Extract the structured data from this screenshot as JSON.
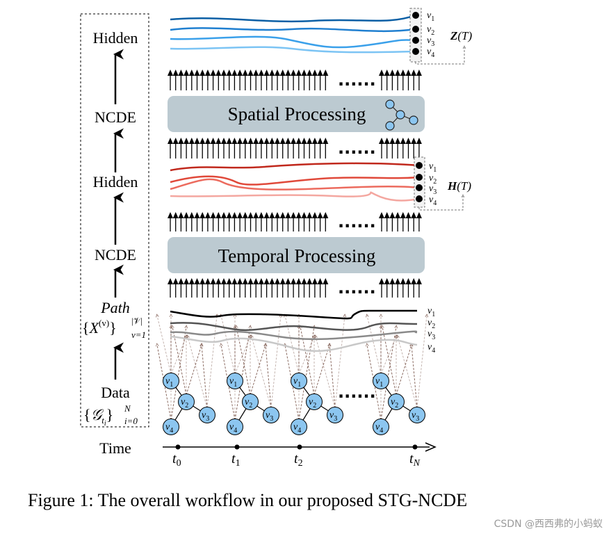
{
  "left_stages": {
    "hidden_top": "Hidden",
    "ncde_top": "NCDE",
    "hidden_mid": "Hidden",
    "ncde_bottom": "NCDE",
    "path": "Path",
    "path_set": {
      "open": "{",
      "base": "X",
      "sup": "(v)",
      "close": "}",
      "upper": "|𝒱|",
      "lower": "v=1"
    },
    "data": "Data",
    "data_set": {
      "open": "{",
      "base": "𝒢",
      "sub": "t",
      "subsub": "i",
      "close": "}",
      "upper": "N",
      "lower": "i=0"
    },
    "time": "Time"
  },
  "blocks": {
    "spatial": "Spatial Processing",
    "temporal": "Temporal Processing"
  },
  "state_labels": {
    "z": {
      "bold": "Z",
      "rest": "(T)"
    },
    "h": {
      "bold": "H",
      "rest": "(T)"
    }
  },
  "vertex_labels": [
    {
      "base": "v",
      "sub": "1"
    },
    {
      "base": "v",
      "sub": "2"
    },
    {
      "base": "v",
      "sub": "3"
    },
    {
      "base": "v",
      "sub": "4"
    }
  ],
  "time_ticks": [
    {
      "base": "t",
      "sub": "0"
    },
    {
      "base": "t",
      "sub": "1"
    },
    {
      "base": "t",
      "sub": "2"
    },
    {
      "base": "t",
      "sub": "N"
    }
  ],
  "ellipsis": "......",
  "colors": {
    "hidden_z": [
      "#0b5fa5",
      "#1f7fd0",
      "#3aa0ea",
      "#7cc4f4"
    ],
    "hidden_h": [
      "#c0281c",
      "#e0493a",
      "#ec6b5e",
      "#f4a7a0"
    ],
    "path": [
      "#000000",
      "#555555",
      "#8a8a8a",
      "#c8c8c8"
    ],
    "node_fill": "#8cc6f0",
    "block_fill": "#bccad1",
    "dashed_arrow": "#8a6a60"
  },
  "caption": "Figure 1: The overall workflow in our proposed STG-NCDE",
  "watermark": "CSDN @西西弗的小蚂蚁"
}
